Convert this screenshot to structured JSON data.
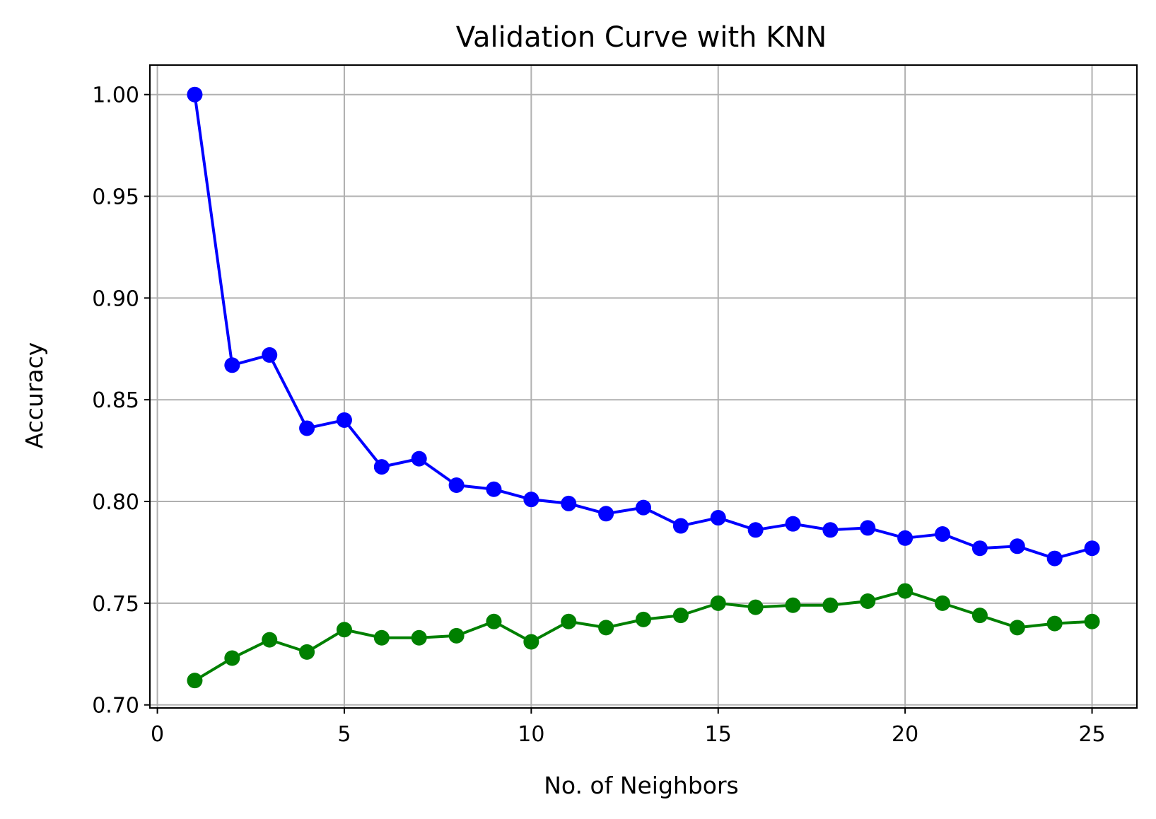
{
  "chart_data": {
    "type": "line",
    "title": "Validation Curve with KNN",
    "xlabel": "No. of Neighbors",
    "ylabel": "Accuracy",
    "xlim": [
      -0.2,
      26.2
    ],
    "ylim": [
      0.6985,
      1.0145
    ],
    "grid": true,
    "x": [
      1,
      2,
      3,
      4,
      5,
      6,
      7,
      8,
      9,
      10,
      11,
      12,
      13,
      14,
      15,
      16,
      17,
      18,
      19,
      20,
      21,
      22,
      23,
      24,
      25
    ],
    "x_ticks": [
      0,
      5,
      10,
      15,
      20,
      25
    ],
    "x_tick_labels": [
      "0",
      "5",
      "10",
      "15",
      "20",
      "25"
    ],
    "y_ticks": [
      0.7,
      0.75,
      0.8,
      0.85,
      0.9,
      0.95,
      1.0
    ],
    "y_tick_labels": [
      "0.70",
      "0.75",
      "0.80",
      "0.85",
      "0.90",
      "0.95",
      "1.00"
    ],
    "series": [
      {
        "color": "#0000ff",
        "marker": "circle",
        "values": [
          1.0,
          0.867,
          0.872,
          0.836,
          0.84,
          0.817,
          0.821,
          0.808,
          0.806,
          0.801,
          0.799,
          0.794,
          0.797,
          0.788,
          0.792,
          0.786,
          0.789,
          0.786,
          0.787,
          0.782,
          0.784,
          0.777,
          0.778,
          0.772,
          0.777
        ]
      },
      {
        "color": "#008000",
        "marker": "circle",
        "values": [
          0.712,
          0.723,
          0.732,
          0.726,
          0.737,
          0.733,
          0.733,
          0.734,
          0.741,
          0.731,
          0.741,
          0.738,
          0.742,
          0.744,
          0.75,
          0.748,
          0.749,
          0.749,
          0.751,
          0.756,
          0.75,
          0.744,
          0.738,
          0.74,
          0.741
        ]
      }
    ]
  }
}
